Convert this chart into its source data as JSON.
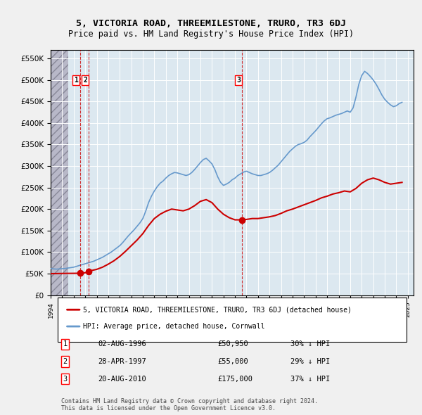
{
  "title": "5, VICTORIA ROAD, THREEMILESTONE, TRURO, TR3 6DJ",
  "subtitle": "Price paid vs. HM Land Registry's House Price Index (HPI)",
  "ylabel_ticks": [
    "£0",
    "£50K",
    "£100K",
    "£150K",
    "£200K",
    "£250K",
    "£300K",
    "£350K",
    "£400K",
    "£450K",
    "£500K",
    "£550K"
  ],
  "ytick_values": [
    0,
    50000,
    100000,
    150000,
    200000,
    250000,
    300000,
    350000,
    400000,
    450000,
    500000,
    550000
  ],
  "ylim": [
    0,
    570000
  ],
  "xlim_start": 1994.0,
  "xlim_end": 2025.5,
  "hpi_color": "#6699cc",
  "price_color": "#cc0000",
  "bg_color": "#e8e8f0",
  "plot_bg_color": "#dce8f0",
  "hatched_bg_color": "#c8c8d8",
  "hatch_end_year": 1995.5,
  "legend_label_red": "5, VICTORIA ROAD, THREEMILESTONE, TRURO, TR3 6DJ (detached house)",
  "legend_label_blue": "HPI: Average price, detached house, Cornwall",
  "transactions": [
    {
      "label": "1",
      "year": 1996.58,
      "price": 50950,
      "x_label": 1996.4
    },
    {
      "label": "2",
      "year": 1997.32,
      "price": 55000,
      "x_label": 1997.1
    },
    {
      "label": "3",
      "year": 2010.63,
      "price": 175000,
      "x_label": 2010.5
    }
  ],
  "transaction_rows": [
    {
      "num": "1",
      "date": "02-AUG-1996",
      "price": "£50,950",
      "hpi": "30% ↓ HPI"
    },
    {
      "num": "2",
      "date": "28-APR-1997",
      "price": "£55,000",
      "hpi": "29% ↓ HPI"
    },
    {
      "num": "3",
      "date": "20-AUG-2010",
      "price": "£175,000",
      "hpi": "37% ↓ HPI"
    }
  ],
  "footer": "Contains HM Land Registry data © Crown copyright and database right 2024.\nThis data is licensed under the Open Government Licence v3.0.",
  "hpi_data_x": [
    1994.0,
    1994.25,
    1994.5,
    1994.75,
    1995.0,
    1995.25,
    1995.5,
    1995.75,
    1996.0,
    1996.25,
    1996.5,
    1996.75,
    1997.0,
    1997.25,
    1997.5,
    1997.75,
    1998.0,
    1998.25,
    1998.5,
    1998.75,
    1999.0,
    1999.25,
    1999.5,
    1999.75,
    2000.0,
    2000.25,
    2000.5,
    2000.75,
    2001.0,
    2001.25,
    2001.5,
    2001.75,
    2002.0,
    2002.25,
    2002.5,
    2002.75,
    2003.0,
    2003.25,
    2003.5,
    2003.75,
    2004.0,
    2004.25,
    2004.5,
    2004.75,
    2005.0,
    2005.25,
    2005.5,
    2005.75,
    2006.0,
    2006.25,
    2006.5,
    2006.75,
    2007.0,
    2007.25,
    2007.5,
    2007.75,
    2008.0,
    2008.25,
    2008.5,
    2008.75,
    2009.0,
    2009.25,
    2009.5,
    2009.75,
    2010.0,
    2010.25,
    2010.5,
    2010.75,
    2011.0,
    2011.25,
    2011.5,
    2011.75,
    2012.0,
    2012.25,
    2012.5,
    2012.75,
    2013.0,
    2013.25,
    2013.5,
    2013.75,
    2014.0,
    2014.25,
    2014.5,
    2014.75,
    2015.0,
    2015.25,
    2015.5,
    2015.75,
    2016.0,
    2016.25,
    2016.5,
    2016.75,
    2017.0,
    2017.25,
    2017.5,
    2017.75,
    2018.0,
    2018.25,
    2018.5,
    2018.75,
    2019.0,
    2019.25,
    2019.5,
    2019.75,
    2020.0,
    2020.25,
    2020.5,
    2020.75,
    2021.0,
    2021.25,
    2021.5,
    2021.75,
    2022.0,
    2022.25,
    2022.5,
    2022.75,
    2023.0,
    2023.25,
    2023.5,
    2023.75,
    2024.0,
    2024.25,
    2024.5
  ],
  "hpi_data_y": [
    62000,
    61000,
    60500,
    61000,
    61500,
    62000,
    63000,
    64000,
    65000,
    67000,
    69000,
    71000,
    73000,
    75000,
    77000,
    79000,
    82000,
    85000,
    88000,
    92000,
    96000,
    100000,
    105000,
    110000,
    115000,
    122000,
    130000,
    138000,
    145000,
    152000,
    160000,
    168000,
    178000,
    195000,
    215000,
    230000,
    242000,
    252000,
    260000,
    265000,
    272000,
    278000,
    282000,
    285000,
    284000,
    282000,
    280000,
    278000,
    280000,
    285000,
    292000,
    300000,
    308000,
    315000,
    318000,
    312000,
    305000,
    292000,
    275000,
    262000,
    255000,
    258000,
    262000,
    268000,
    272000,
    278000,
    282000,
    286000,
    288000,
    285000,
    282000,
    280000,
    278000,
    278000,
    280000,
    282000,
    285000,
    290000,
    296000,
    302000,
    310000,
    318000,
    326000,
    334000,
    340000,
    346000,
    350000,
    352000,
    355000,
    360000,
    368000,
    375000,
    382000,
    390000,
    398000,
    405000,
    410000,
    412000,
    415000,
    418000,
    420000,
    422000,
    425000,
    428000,
    425000,
    435000,
    460000,
    490000,
    510000,
    520000,
    515000,
    508000,
    500000,
    490000,
    478000,
    465000,
    455000,
    448000,
    442000,
    438000,
    440000,
    445000,
    448000
  ],
  "price_data_x": [
    1994.0,
    1994.5,
    1995.0,
    1995.5,
    1996.0,
    1996.58,
    1997.0,
    1997.32,
    1997.5,
    1998.0,
    1998.5,
    1999.0,
    1999.5,
    2000.0,
    2000.5,
    2001.0,
    2001.5,
    2002.0,
    2002.5,
    2003.0,
    2003.5,
    2004.0,
    2004.5,
    2005.0,
    2005.5,
    2006.0,
    2006.5,
    2007.0,
    2007.5,
    2008.0,
    2008.5,
    2009.0,
    2009.5,
    2010.0,
    2010.63,
    2011.0,
    2011.5,
    2012.0,
    2012.5,
    2013.0,
    2013.5,
    2014.0,
    2014.5,
    2015.0,
    2015.5,
    2016.0,
    2016.5,
    2017.0,
    2017.5,
    2018.0,
    2018.5,
    2019.0,
    2019.5,
    2020.0,
    2020.5,
    2021.0,
    2021.5,
    2022.0,
    2022.5,
    2023.0,
    2023.5,
    2024.0,
    2024.5
  ],
  "price_data_y": [
    50000,
    50200,
    50400,
    50600,
    50700,
    50950,
    52000,
    55000,
    57000,
    60000,
    65000,
    72000,
    80000,
    90000,
    102000,
    115000,
    128000,
    143000,
    162000,
    178000,
    188000,
    195000,
    200000,
    198000,
    196000,
    200000,
    208000,
    218000,
    222000,
    215000,
    200000,
    188000,
    180000,
    175000,
    175000,
    176000,
    178000,
    178000,
    180000,
    182000,
    185000,
    190000,
    196000,
    200000,
    205000,
    210000,
    215000,
    220000,
    226000,
    230000,
    235000,
    238000,
    242000,
    240000,
    248000,
    260000,
    268000,
    272000,
    268000,
    262000,
    258000,
    260000,
    262000
  ]
}
